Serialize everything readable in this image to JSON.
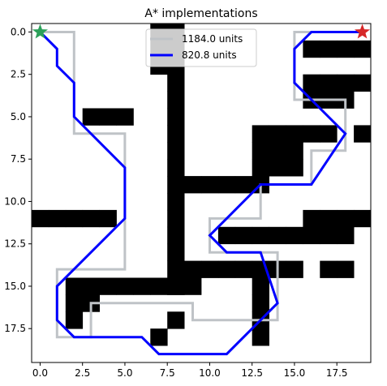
{
  "chart_data": {
    "type": "line",
    "title": "A* implementations",
    "xlabel": "",
    "ylabel": "",
    "xlim": [
      -0.5,
      19.5
    ],
    "ylim": [
      19.5,
      -0.5
    ],
    "x_ticks": [
      0.0,
      2.5,
      5.0,
      7.5,
      10.0,
      12.5,
      15.0,
      17.5
    ],
    "y_ticks": [
      0.0,
      2.5,
      5.0,
      7.5,
      10.0,
      12.5,
      15.0,
      17.5
    ],
    "x_tick_labels": [
      "0.0",
      "2.5",
      "5.0",
      "7.5",
      "10.0",
      "12.5",
      "15.0",
      "17.5"
    ],
    "y_tick_labels": [
      "0.0",
      "2.5",
      "5.0",
      "7.5",
      "10.0",
      "12.5",
      "15.0",
      "17.5"
    ],
    "legend_position": "upper center",
    "obstacle_color": "#000000",
    "obstacles": [
      [
        0,
        7
      ],
      [
        0,
        8
      ],
      [
        1,
        7
      ],
      [
        1,
        8
      ],
      [
        2,
        7
      ],
      [
        2,
        8
      ],
      [
        3,
        8
      ],
      [
        4,
        8
      ],
      [
        5,
        8
      ],
      [
        6,
        8
      ],
      [
        7,
        8
      ],
      [
        8,
        8
      ],
      [
        9,
        8
      ],
      [
        10,
        8
      ],
      [
        11,
        8
      ],
      [
        12,
        8
      ],
      [
        13,
        8
      ],
      [
        14,
        8
      ],
      [
        15,
        8
      ],
      [
        3,
        16
      ],
      [
        3,
        17
      ],
      [
        3,
        18
      ],
      [
        3,
        19
      ],
      [
        1,
        16
      ],
      [
        1,
        17
      ],
      [
        1,
        18
      ],
      [
        1,
        19
      ],
      [
        4,
        16
      ],
      [
        4,
        17
      ],
      [
        4,
        18
      ],
      [
        5,
        3
      ],
      [
        5,
        4
      ],
      [
        5,
        5
      ],
      [
        6,
        13
      ],
      [
        6,
        14
      ],
      [
        6,
        15
      ],
      [
        6,
        16
      ],
      [
        6,
        17
      ],
      [
        6,
        19
      ],
      [
        7,
        13
      ],
      [
        7,
        14
      ],
      [
        7,
        15
      ],
      [
        8,
        13
      ],
      [
        8,
        14
      ],
      [
        8,
        15
      ],
      [
        9,
        9
      ],
      [
        9,
        10
      ],
      [
        9,
        11
      ],
      [
        9,
        12
      ],
      [
        9,
        13
      ],
      [
        11,
        0
      ],
      [
        11,
        1
      ],
      [
        11,
        2
      ],
      [
        11,
        3
      ],
      [
        11,
        4
      ],
      [
        11,
        16
      ],
      [
        11,
        17
      ],
      [
        11,
        18
      ],
      [
        11,
        19
      ],
      [
        12,
        11
      ],
      [
        12,
        12
      ],
      [
        12,
        13
      ],
      [
        12,
        14
      ],
      [
        12,
        15
      ],
      [
        12,
        16
      ],
      [
        12,
        17
      ],
      [
        12,
        18
      ],
      [
        14,
        9
      ],
      [
        14,
        10
      ],
      [
        14,
        11
      ],
      [
        14,
        12
      ],
      [
        14,
        13
      ],
      [
        14,
        14
      ],
      [
        14,
        15
      ],
      [
        14,
        17
      ],
      [
        14,
        18
      ],
      [
        15,
        2
      ],
      [
        15,
        3
      ],
      [
        15,
        4
      ],
      [
        15,
        5
      ],
      [
        15,
        6
      ],
      [
        15,
        7
      ],
      [
        15,
        8
      ],
      [
        15,
        9
      ],
      [
        15,
        13
      ],
      [
        16,
        2
      ],
      [
        16,
        3
      ],
      [
        16,
        13
      ],
      [
        17,
        2
      ],
      [
        17,
        8
      ],
      [
        17,
        13
      ],
      [
        18,
        7
      ],
      [
        18,
        13
      ]
    ],
    "series": [
      {
        "name": "1184.0 units",
        "color": "#bfc3c7",
        "x": [
          0,
          2,
          2,
          5,
          5,
          1,
          1,
          3,
          3,
          9,
          9,
          14,
          14,
          13,
          10,
          10,
          13,
          13,
          16,
          16,
          18,
          18,
          15,
          15,
          19
        ],
        "y": [
          0,
          0,
          6,
          6,
          14,
          14,
          18,
          18,
          16,
          16,
          17,
          17,
          13,
          13,
          13,
          11,
          11,
          9,
          9,
          7,
          7,
          4,
          4,
          0,
          0
        ]
      },
      {
        "name": "820.8 units",
        "color": "#0000ff",
        "x": [
          0,
          1,
          1,
          2,
          2,
          5,
          5,
          1,
          1,
          2,
          6,
          7,
          11,
          14,
          13,
          11,
          10,
          11,
          13,
          14,
          16,
          18,
          15,
          15,
          16,
          19
        ],
        "y": [
          0,
          1,
          2,
          3,
          5,
          8,
          11,
          15,
          17,
          18,
          18,
          19,
          19,
          16,
          13,
          13,
          12,
          11,
          9,
          9,
          9,
          6,
          3,
          1,
          0,
          0
        ]
      }
    ],
    "start": {
      "x": 0,
      "y": 0,
      "color": "#2ca05a"
    },
    "goal": {
      "x": 19,
      "y": 0,
      "color": "#d62728"
    }
  }
}
